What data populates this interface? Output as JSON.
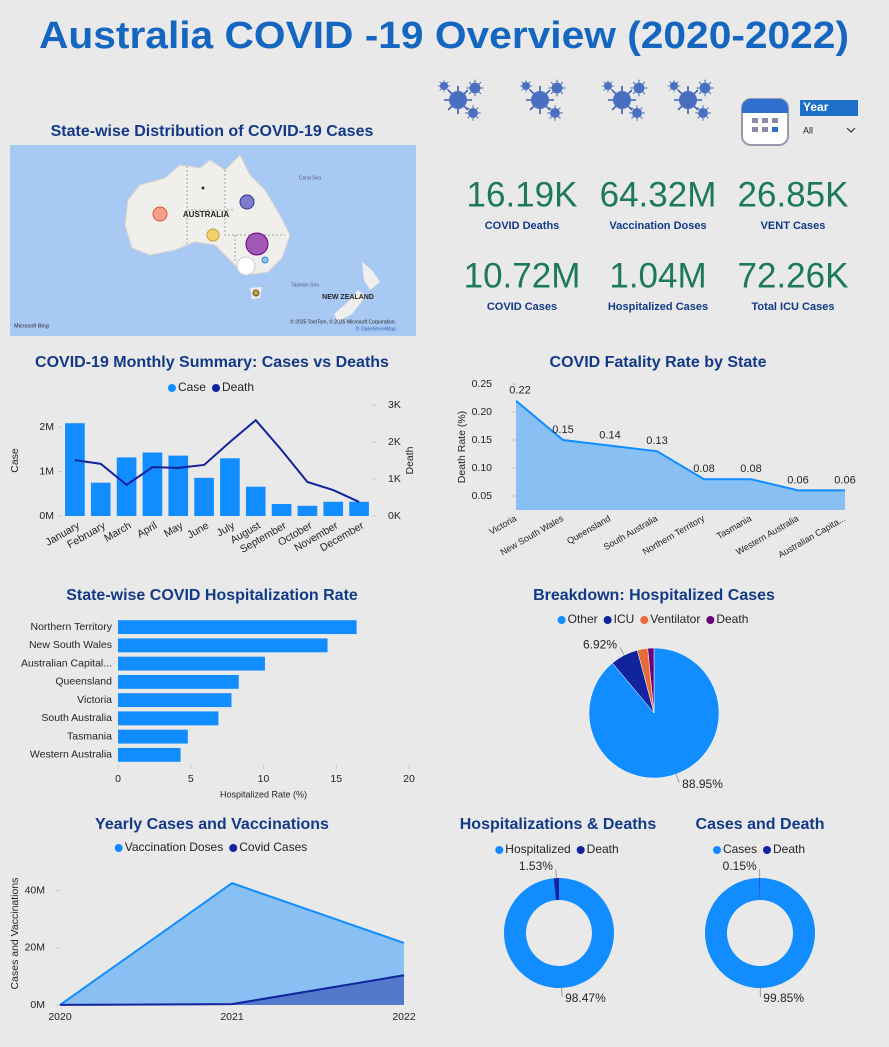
{
  "title": "Australia COVID -19 Overview (2020-2022)",
  "slicer": {
    "label": "Year",
    "value": "All"
  },
  "kpis": [
    {
      "value": "16.19K",
      "label": "COVID Deaths"
    },
    {
      "value": "64.32M",
      "label": "Vaccination Doses"
    },
    {
      "value": "26.85K",
      "label": "VENT Cases"
    },
    {
      "value": "10.72M",
      "label": "COVID Cases"
    },
    {
      "value": "1.04M",
      "label": "Hospitalized Cases"
    },
    {
      "value": "72.26K",
      "label": "Total ICU Cases"
    }
  ],
  "map": {
    "title": "State-wise Distribution of COVID-19 Cases",
    "places": [
      "AUSTRALIA",
      "Coral Sea",
      "Tasman Sea",
      "NEW ZEALAND"
    ],
    "logo": "Microsoft Bing",
    "attribution": "© 2025 TomTom, © 2025 Microsoft Corporation,",
    "osm": "© OpenStreetMap"
  },
  "chart_data": [
    {
      "type": "combo",
      "title": "COVID-19 Monthly Summary: Cases vs Deaths",
      "categories": [
        "January",
        "February",
        "March",
        "April",
        "May",
        "June",
        "July",
        "August",
        "September",
        "October",
        "November",
        "December"
      ],
      "series": [
        {
          "name": "Case",
          "color": "#118DFF",
          "type": "bar",
          "values": [
            2090000,
            750000,
            1320000,
            1430000,
            1360000,
            860000,
            1300000,
            660000,
            270000,
            230000,
            320000,
            320000
          ]
        },
        {
          "name": "Death",
          "color": "#12239E",
          "type": "line",
          "axis": "y2",
          "values": [
            1510,
            1410,
            840,
            1320,
            1300,
            1380,
            2000,
            2590,
            1780,
            920,
            700,
            380
          ]
        }
      ],
      "ylabel": "Case",
      "y2label": "Death",
      "ylim": [
        0,
        2500000
      ],
      "yticks": [
        {
          "value": 0,
          "label": "0M"
        },
        {
          "value": 1000000,
          "label": "1M"
        },
        {
          "value": 2000000,
          "label": "2M"
        }
      ],
      "y2lim": [
        0,
        3000
      ],
      "y2ticks": [
        {
          "value": 0,
          "label": "0K"
        },
        {
          "value": 1000,
          "label": "1K"
        },
        {
          "value": 2000,
          "label": "2K"
        },
        {
          "value": 3000,
          "label": "3K"
        }
      ]
    },
    {
      "type": "area",
      "title": "COVID Fatality Rate by State",
      "categories": [
        "Victoria",
        "New South Wales",
        "Queensland",
        "South Australia",
        "Northern Territory",
        "Tasmania",
        "Western Australia",
        "Australian Capita..."
      ],
      "values": [
        0.22,
        0.15,
        0.14,
        0.13,
        0.08,
        0.08,
        0.06,
        0.06
      ],
      "color": "#118DFF",
      "data_labels": true,
      "ylabel": "Death Rate (%)",
      "ylim": [
        0.025,
        0.25
      ],
      "yticks": [
        0.05,
        {
          "value": 0.1,
          "label": "0.10"
        },
        0.15,
        {
          "value": 0.2,
          "label": "0.20"
        },
        0.25
      ]
    },
    {
      "type": "hbar",
      "title": "State-wise COVID Hospitalization Rate",
      "categories": [
        "Northern Territory",
        "New South Wales",
        "Australian Capital...",
        "Queensland",
        "Victoria",
        "South Australia",
        "Tasmania",
        "Western Australia"
      ],
      "values": [
        16.4,
        14.4,
        10.1,
        8.3,
        7.8,
        6.9,
        4.8,
        4.3
      ],
      "color": "#118DFF",
      "xlabel": "Hospitalized Rate (%)",
      "xlim": [
        0,
        20
      ],
      "xticks": [
        0,
        5,
        10,
        15,
        20
      ]
    },
    {
      "type": "pie",
      "title": "Breakdown: Hospitalized Cases",
      "categories": [
        "Other",
        "ICU",
        "Ventilator",
        "Death"
      ],
      "values": [
        88.95,
        6.92,
        2.58,
        1.55
      ],
      "value_labels": [
        "88.95%",
        "6.92%",
        null,
        null
      ],
      "colors": [
        "#118DFF",
        "#12239E",
        "#E66C37",
        "#6B007B"
      ]
    },
    {
      "type": "area",
      "title": "Yearly Cases and Vaccinations",
      "categories": [
        "2020",
        "2021",
        "2022"
      ],
      "series": [
        {
          "name": "Vaccination Doses",
          "color": "#118DFF",
          "values": [
            0,
            42600000,
            21700000
          ]
        },
        {
          "name": "Covid Cases",
          "color": "#12239E",
          "values": [
            30000,
            300000,
            10390000
          ]
        }
      ],
      "ylabel": "Cases and Vaccinations",
      "ylim": [
        0,
        50000000
      ],
      "yticks": [
        {
          "value": 0,
          "label": "0M"
        },
        {
          "value": 20000000,
          "label": "20M"
        },
        {
          "value": 40000000,
          "label": "40M"
        }
      ]
    },
    {
      "type": "donut",
      "title": "Hospitalizations & Deaths",
      "categories": [
        "Hospitalized",
        "Death"
      ],
      "values": [
        98.47,
        1.53
      ],
      "value_labels": [
        "98.47%",
        "1.53%"
      ],
      "colors": [
        "#118DFF",
        "#12239E"
      ]
    },
    {
      "type": "donut",
      "title": "Cases and Death",
      "categories": [
        "Cases",
        "Death"
      ],
      "values": [
        99.85,
        0.15
      ],
      "value_labels": [
        "99.85%",
        "0.15%"
      ],
      "colors": [
        "#118DFF",
        "#12239E"
      ]
    }
  ]
}
